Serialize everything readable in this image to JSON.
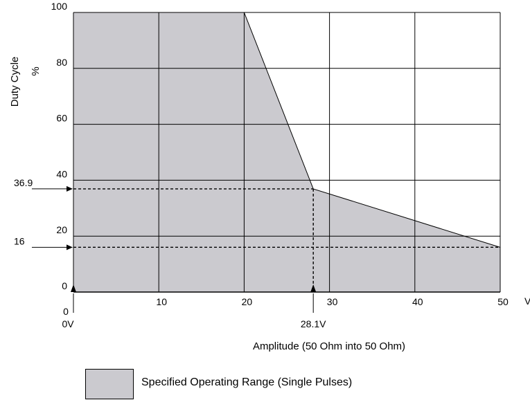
{
  "chart_data": {
    "type": "area",
    "title": "",
    "xlabel": "Amplitude (50 Ohm into 50 Ohm)",
    "x_unit": "V",
    "ylabel": "Duty Cycle",
    "y_unit": "%",
    "xlim": [
      0,
      50
    ],
    "ylim": [
      0,
      100
    ],
    "x_ticks": [
      "0",
      "10",
      "20",
      "30",
      "40",
      "50"
    ],
    "y_ticks": [
      "0",
      "20",
      "40",
      "60",
      "80",
      "100"
    ],
    "grid": true,
    "boundary": [
      {
        "x": 0,
        "y": 100
      },
      {
        "x": 20,
        "y": 100
      },
      {
        "x": 28.1,
        "y": 36.9
      },
      {
        "x": 50,
        "y": 16
      },
      {
        "x": 50,
        "y": 0
      },
      {
        "x": 0,
        "y": 0
      }
    ],
    "annotations": [
      {
        "type": "y-marker",
        "value": 36.9,
        "label": "36.9"
      },
      {
        "type": "y-marker",
        "value": 16,
        "label": "16"
      },
      {
        "type": "x-marker",
        "value": 0,
        "label": "0V"
      },
      {
        "type": "x-marker",
        "value": 28.1,
        "label": "28.1V"
      }
    ],
    "legend": [
      {
        "label": "Specified Operating Range (Single Pulses)",
        "color": "#cbcacf"
      }
    ],
    "fill_color": "#cbcacf"
  }
}
